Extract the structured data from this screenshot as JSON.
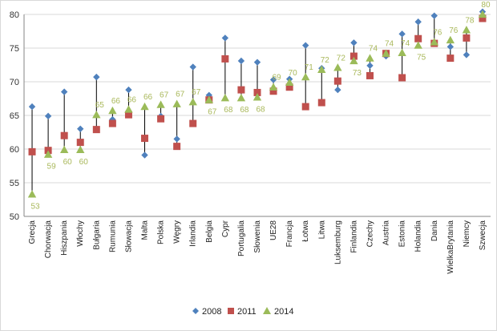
{
  "chart_data": {
    "type": "scatter",
    "ylim": [
      50,
      80
    ],
    "yticks": [
      50,
      55,
      60,
      65,
      70,
      75,
      80
    ],
    "grid": true,
    "legend_placement": "bottom",
    "categories": [
      "Grecja",
      "Chorwacja",
      "Hiszpania",
      "Włochy",
      "Bułgaria",
      "Rumunia",
      "Słowacja",
      "Malta",
      "Polska",
      "Węgry",
      "Irlandia",
      "Belgia",
      "Cypr",
      "Portugalia",
      "Słowenia",
      "UE28",
      "Francja",
      "Łotwa",
      "Litwa",
      "Luksemburg",
      "Finlandia",
      "Czechy",
      "Austria",
      "Estonia",
      "Holandia",
      "Dania",
      "WielkaBrytania",
      "Niemcy",
      "Szwecja"
    ],
    "series": [
      {
        "name": "2008",
        "color": "#4f81bd",
        "marker": "diamond",
        "values": [
          66.3,
          64.9,
          68.5,
          63.0,
          70.7,
          64.4,
          68.8,
          59.1,
          64.9,
          61.5,
          72.2,
          68.0,
          76.5,
          73.1,
          72.9,
          70.3,
          70.4,
          75.4,
          72.0,
          68.8,
          75.8,
          72.4,
          73.8,
          77.1,
          78.9,
          79.8,
          75.2,
          74.0,
          80.4
        ]
      },
      {
        "name": "2011",
        "color": "#c0504d",
        "marker": "square",
        "values": [
          59.6,
          59.8,
          62.0,
          61.0,
          62.9,
          63.8,
          65.1,
          61.6,
          64.5,
          60.4,
          63.8,
          67.3,
          73.4,
          68.8,
          68.4,
          68.6,
          69.2,
          66.3,
          66.9,
          70.1,
          73.8,
          70.9,
          74.2,
          70.6,
          76.4,
          75.7,
          73.5,
          76.5,
          79.4
        ]
      },
      {
        "name": "2014",
        "color": "#9bbb59",
        "marker": "triangle",
        "values": [
          53.3,
          59.2,
          59.9,
          59.9,
          65.1,
          65.7,
          65.9,
          66.3,
          66.6,
          66.7,
          67.0,
          67.3,
          67.6,
          67.6,
          67.7,
          69.2,
          69.9,
          70.7,
          71.8,
          72.1,
          73.1,
          73.5,
          74.2,
          74.3,
          75.4,
          75.9,
          76.2,
          77.7,
          80.0
        ]
      }
    ],
    "labels_2014": [
      "53",
      "59",
      "60",
      "60",
      "65",
      "66",
      "66",
      "66",
      "67",
      "67",
      "67",
      "67",
      "68",
      "68",
      "68",
      "69",
      "70",
      "71",
      "72",
      "72",
      "73",
      "74",
      "74",
      "74",
      "75",
      "76",
      "76",
      "78",
      "80"
    ]
  }
}
